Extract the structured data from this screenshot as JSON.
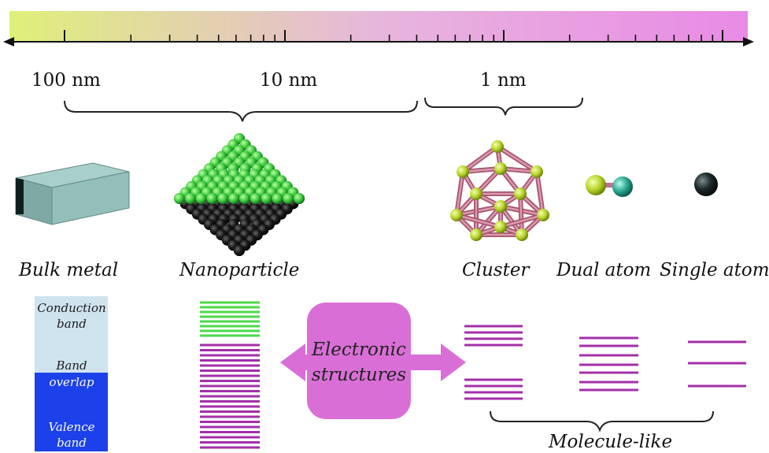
{
  "scale": {
    "labels": [
      "100 nm",
      "10 nm",
      "1 nm"
    ]
  },
  "structures": {
    "bulk_metal": "Bulk metal",
    "nanoparticle": "Nanoparticle",
    "cluster": "Cluster",
    "dual_atom": "Dual atom",
    "single_atom": "Single atom"
  },
  "bands": {
    "conduction": "Conduction band",
    "overlap_line1": "Band",
    "overlap_line2": "overlap",
    "valence": "Valence band"
  },
  "center_label_line1": "Electronic",
  "center_label_line2": "structures",
  "molecule_like": "Molecule-like",
  "colors": {
    "gradient_start": "#dff07a",
    "gradient_end": "#e98ae6",
    "conduction_band": "#cfe3ef",
    "valence_band": "#1c41ea",
    "green_levels": "#4cd94a",
    "purple_levels": "#a32fa8",
    "arrow_fill": "#d96fd6"
  }
}
